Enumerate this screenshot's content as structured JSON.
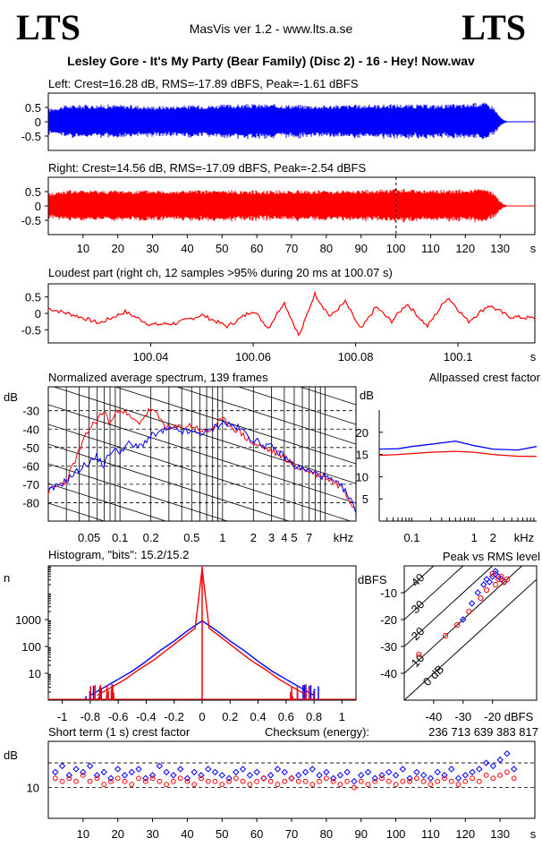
{
  "header": {
    "logo_left": "LTS",
    "logo_right": "LTS",
    "app_title": "MasVis ver 1.2 - www.lts.a.se",
    "track_title": "Lesley Gore - It's My Party (Bear Family) (Disc 2) - 16 - Hey! Now.wav"
  },
  "colors": {
    "left": "#0000ff",
    "right": "#ff0000"
  },
  "chart_data": [
    {
      "id": "left_waveform",
      "type": "area",
      "title": "Left: Crest=16.28 dB, RMS=-17.89 dBFS, Peak=-1.61 dBFS",
      "yticks": [
        "0.5",
        "0",
        "-0.5"
      ],
      "ylim": [
        -1,
        1
      ],
      "xlim": [
        0,
        140
      ],
      "envelope_x": [
        0,
        5,
        10,
        20,
        30,
        40,
        50,
        60,
        70,
        80,
        90,
        100,
        110,
        120,
        125,
        128,
        129,
        130,
        131,
        132,
        135,
        140
      ],
      "envelope_peak": [
        0.45,
        0.58,
        0.6,
        0.6,
        0.55,
        0.58,
        0.6,
        0.62,
        0.6,
        0.58,
        0.6,
        0.62,
        0.6,
        0.62,
        0.7,
        0.55,
        0.35,
        0.18,
        0.06,
        0.02,
        0.01,
        0.0
      ]
    },
    {
      "id": "right_waveform",
      "type": "area",
      "title": "Right: Crest=14.56 dB, RMS=-17.09 dBFS, Peak=-2.54 dBFS",
      "yticks": [
        "0.5",
        "0",
        "-0.5"
      ],
      "ylim": [
        -1,
        1
      ],
      "xlim": [
        0,
        140
      ],
      "xticks": [
        10,
        20,
        30,
        40,
        50,
        60,
        70,
        80,
        90,
        100,
        110,
        120,
        130
      ],
      "xunit": "s",
      "marker_x": 100.07,
      "envelope_x": [
        0,
        5,
        10,
        20,
        30,
        40,
        50,
        60,
        70,
        80,
        90,
        100,
        110,
        120,
        125,
        128,
        129,
        130,
        131,
        132,
        135,
        140
      ],
      "envelope_peak": [
        0.45,
        0.55,
        0.55,
        0.55,
        0.55,
        0.55,
        0.55,
        0.55,
        0.55,
        0.55,
        0.55,
        0.6,
        0.55,
        0.58,
        0.6,
        0.5,
        0.32,
        0.18,
        0.06,
        0.02,
        0.01,
        0.0
      ]
    },
    {
      "id": "loudest_part",
      "type": "line",
      "title": "Loudest part (right ch, 12 samples >95% during 20 ms at 100.07 s)",
      "yticks": [
        "0.5",
        "0",
        "-0.5"
      ],
      "ylim": [
        -0.9,
        0.9
      ],
      "xlim": [
        100.02,
        100.115
      ],
      "xticks": [
        "100.04",
        "100.06",
        "100.08",
        "100.1"
      ],
      "xunit": "s",
      "x": [
        100.02,
        100.025,
        100.03,
        100.035,
        100.04,
        100.045,
        100.05,
        100.055,
        100.06,
        100.063,
        100.066,
        100.069,
        100.072,
        100.075,
        100.078,
        100.081,
        100.084,
        100.087,
        100.09,
        100.094,
        100.098,
        100.102,
        100.106,
        100.11,
        100.115
      ],
      "y": [
        0.15,
        -0.05,
        -0.3,
        0.05,
        -0.35,
        -0.3,
        -0.05,
        -0.4,
        0.1,
        -0.45,
        0.35,
        -0.7,
        0.6,
        -0.1,
        0.35,
        -0.5,
        0.2,
        -0.25,
        0.3,
        -0.4,
        0.5,
        -0.25,
        0.25,
        -0.1,
        -0.15
      ]
    },
    {
      "id": "spectrum",
      "type": "line",
      "title": "Normalized average spectrum, 139 frames",
      "ylabel": "dB",
      "yticks": [
        "-30",
        "-40",
        "-50",
        "-60",
        "-70",
        "-80"
      ],
      "ylim": [
        -90,
        -17
      ],
      "xscale": "log",
      "xlim": [
        0.02,
        20
      ],
      "xticks": [
        "0.05",
        "0.1",
        "0.2",
        "0.5",
        "1",
        "2",
        "3",
        "4",
        "5",
        "7"
      ],
      "xunit": "kHz",
      "series": [
        {
          "color": "red",
          "x": [
            0.02,
            0.03,
            0.04,
            0.05,
            0.06,
            0.07,
            0.08,
            0.1,
            0.12,
            0.15,
            0.2,
            0.3,
            0.5,
            0.7,
            1,
            1.5,
            2,
            3,
            4,
            5,
            7,
            10,
            15,
            20
          ],
          "y": [
            -74,
            -68,
            -52,
            -40,
            -35,
            -30,
            -37,
            -28,
            -33,
            -37,
            -29,
            -40,
            -38,
            -42,
            -35,
            -42,
            -48,
            -52,
            -55,
            -60,
            -63,
            -66,
            -72,
            -84
          ]
        },
        {
          "color": "blue",
          "x": [
            0.02,
            0.03,
            0.04,
            0.05,
            0.06,
            0.07,
            0.08,
            0.1,
            0.12,
            0.15,
            0.2,
            0.3,
            0.5,
            0.7,
            1,
            1.5,
            2,
            3,
            4,
            5,
            7,
            10,
            15,
            20
          ],
          "y": [
            -74,
            -68,
            -62,
            -58,
            -55,
            -60,
            -52,
            -52,
            -48,
            -50,
            -44,
            -40,
            -42,
            -42,
            -36,
            -40,
            -46,
            -50,
            -55,
            -60,
            -63,
            -66,
            -72,
            -84
          ]
        }
      ]
    },
    {
      "id": "allpassed_crest",
      "type": "line",
      "title": "Allpassed crest factor",
      "ylabel": "dB",
      "yticks": [
        "20",
        "15",
        "10",
        "5"
      ],
      "ylim": [
        0,
        25
      ],
      "xscale": "log",
      "xlim": [
        0.03,
        10
      ],
      "xticks": [
        "0.1",
        "1",
        "2"
      ],
      "xunit": "kHz",
      "series": [
        {
          "color": "blue",
          "x": [
            0.03,
            0.06,
            0.1,
            0.2,
            0.5,
            1,
            2,
            5,
            10
          ],
          "y": [
            16.2,
            16.3,
            16.8,
            17.3,
            18.0,
            17.0,
            16.2,
            16.0,
            16.8
          ]
        },
        {
          "color": "red",
          "x": [
            0.03,
            0.06,
            0.1,
            0.2,
            0.5,
            1,
            2,
            5,
            10
          ],
          "y": [
            14.8,
            15.0,
            15.2,
            15.5,
            15.7,
            15.5,
            15.0,
            14.6,
            14.6
          ]
        }
      ]
    },
    {
      "id": "histogram",
      "type": "line",
      "title": "Histogram, \"bits\": 15.2/15.2",
      "ylabel": "n",
      "yscale": "log",
      "yticks": [
        "1000",
        "100",
        "10"
      ],
      "ylim": [
        1,
        100000
      ],
      "xlim": [
        -1.1,
        1.1
      ],
      "xticks": [
        "-1",
        "-0.8",
        "-0.6",
        "-0.4",
        "-0.2",
        "0",
        "0.2",
        "0.4",
        "0.6",
        "0.8",
        "1"
      ],
      "series": [
        {
          "color": "blue",
          "x": [
            -0.8,
            -0.7,
            -0.6,
            -0.5,
            -0.4,
            -0.3,
            -0.2,
            -0.1,
            0,
            0.1,
            0.2,
            0.3,
            0.4,
            0.5,
            0.6,
            0.7,
            0.8
          ],
          "y": [
            1.5,
            3,
            6,
            12,
            28,
            70,
            160,
            400,
            900,
            400,
            160,
            70,
            28,
            12,
            6,
            3,
            1.5
          ]
        },
        {
          "color": "red",
          "x": [
            -0.75,
            -0.65,
            -0.55,
            -0.45,
            -0.35,
            -0.25,
            -0.15,
            -0.05,
            0,
            0.05,
            0.15,
            0.25,
            0.35,
            0.45,
            0.55,
            0.65,
            0.75
          ],
          "y": [
            1.5,
            3,
            6,
            14,
            30,
            75,
            190,
            480,
            80000,
            480,
            190,
            75,
            30,
            14,
            6,
            3,
            1.5
          ]
        }
      ]
    },
    {
      "id": "peak_vs_rms",
      "type": "scatter",
      "title": "Peak vs RMS level",
      "ylabel": "dBFS",
      "xlabel": "dBFS",
      "xlim": [
        -50,
        -5
      ],
      "ylim": [
        -50,
        0
      ],
      "xticks": [
        "-40",
        "-30",
        "-20"
      ],
      "yticks": [
        "-10",
        "-20",
        "-30",
        "-40"
      ],
      "diagonal_labels": [
        "40",
        "30",
        "20",
        "10",
        "0 dB"
      ],
      "series": [
        {
          "color": "blue",
          "x": [
            -22,
            -20,
            -19,
            -18,
            -21,
            -23,
            -25,
            -17,
            -19,
            -16,
            -27,
            -30
          ],
          "y": [
            -5,
            -4,
            -3,
            -4,
            -6,
            -7,
            -10,
            -5,
            -2,
            -6,
            -14,
            -20
          ]
        },
        {
          "color": "red",
          "x": [
            -18,
            -17,
            -16,
            -19,
            -20,
            -22,
            -24,
            -28,
            -32,
            -36,
            -45,
            -15
          ],
          "y": [
            -5,
            -4,
            -6,
            -7,
            -3,
            -9,
            -12,
            -17,
            -22,
            -26,
            -33,
            -5
          ]
        }
      ]
    },
    {
      "id": "short_term_crest",
      "type": "scatter",
      "title": "Short term (1 s) crest factor",
      "checksum_label": "Checksum (energy):",
      "checksum_value": "236 713 639 383 817",
      "ylabel": "dB",
      "yticks": [
        "10"
      ],
      "ylim": [
        0,
        25
      ],
      "xlim": [
        0,
        140
      ],
      "xticks": [
        10,
        20,
        30,
        40,
        50,
        60,
        70,
        80,
        90,
        100,
        110,
        120,
        130
      ],
      "xunit": "s",
      "dashed_lines": [
        18,
        10
      ],
      "series": [
        {
          "color": "blue",
          "x": [
            2,
            4,
            6,
            8,
            10,
            12,
            14,
            16,
            18,
            20,
            22,
            24,
            26,
            28,
            30,
            32,
            34,
            36,
            38,
            40,
            42,
            44,
            46,
            48,
            50,
            52,
            54,
            56,
            58,
            60,
            62,
            64,
            66,
            68,
            70,
            72,
            74,
            76,
            78,
            80,
            82,
            84,
            86,
            88,
            90,
            92,
            94,
            96,
            98,
            100,
            102,
            104,
            106,
            108,
            110,
            112,
            114,
            116,
            118,
            120,
            122,
            124,
            126,
            128,
            130,
            132,
            134
          ],
          "y": [
            15,
            17,
            14,
            16,
            15,
            17,
            14,
            15,
            13,
            16,
            14,
            15,
            16,
            13,
            14,
            17,
            15,
            14,
            16,
            13,
            15,
            14,
            16,
            15,
            14,
            13,
            15,
            16,
            14,
            15,
            13,
            14,
            16,
            15,
            13,
            14,
            15,
            16,
            14,
            15,
            13,
            14,
            15,
            12,
            14,
            15,
            13,
            14,
            15,
            14,
            16,
            13,
            15,
            14,
            13,
            15,
            14,
            16,
            13,
            14,
            15,
            16,
            18,
            17,
            19,
            21,
            16
          ]
        },
        {
          "color": "red",
          "x": [
            2,
            4,
            6,
            8,
            10,
            12,
            14,
            16,
            18,
            20,
            22,
            24,
            26,
            28,
            30,
            32,
            34,
            36,
            38,
            40,
            42,
            44,
            46,
            48,
            50,
            52,
            54,
            56,
            58,
            60,
            62,
            64,
            66,
            68,
            70,
            72,
            74,
            76,
            78,
            80,
            82,
            84,
            86,
            88,
            90,
            92,
            94,
            96,
            98,
            100,
            102,
            104,
            106,
            108,
            110,
            112,
            114,
            116,
            118,
            120,
            122,
            124,
            126,
            128,
            130,
            132,
            134
          ],
          "y": [
            13,
            12,
            13,
            12,
            14,
            12,
            13,
            11,
            12,
            13,
            12,
            11,
            13,
            12,
            13,
            12,
            11,
            12,
            13,
            12,
            11,
            13,
            12,
            12,
            11,
            12,
            13,
            12,
            11,
            12,
            13,
            12,
            11,
            12,
            13,
            12,
            12,
            11,
            12,
            13,
            12,
            11,
            12,
            10,
            12,
            11,
            12,
            13,
            12,
            11,
            12,
            12,
            13,
            12,
            11,
            12,
            13,
            12,
            11,
            12,
            13,
            12,
            14,
            13,
            14,
            15,
            13
          ]
        }
      ]
    }
  ]
}
